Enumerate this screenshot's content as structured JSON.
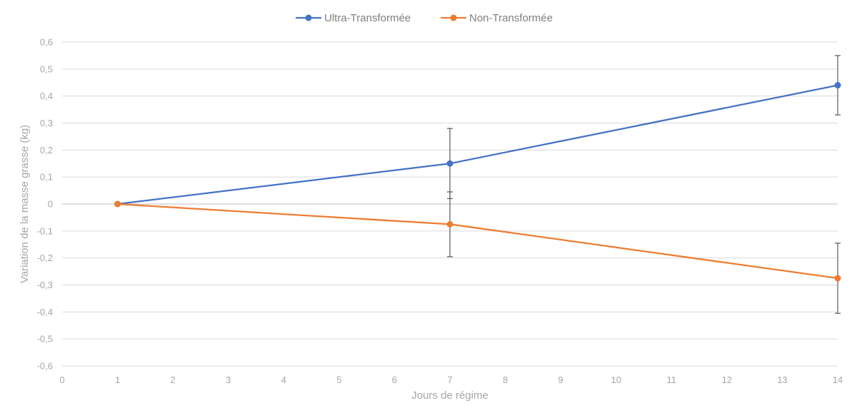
{
  "chart_data": {
    "type": "line",
    "xlabel": "Jours de régime",
    "ylabel": "Variation de la masse grasse (kg)",
    "xlim": [
      0,
      14
    ],
    "ylim": [
      -0.6,
      0.6
    ],
    "x_ticks": [
      "0",
      "1",
      "2",
      "3",
      "4",
      "5",
      "6",
      "7",
      "8",
      "9",
      "10",
      "11",
      "12",
      "13",
      "14"
    ],
    "y_ticks": [
      "0,6",
      "0,5",
      "0,4",
      "0,3",
      "0,2",
      "0,1",
      "0",
      "-0,1",
      "-0,2",
      "-0,3",
      "-0,4",
      "-0,5",
      "-0,6"
    ],
    "grid": true,
    "legend_position": "top",
    "series": [
      {
        "name": "Ultra-Transformée",
        "color": "#4472c4",
        "points": [
          {
            "x": 1,
            "y": 0.0,
            "err_low": 0.0,
            "err_high": 0.0
          },
          {
            "x": 7,
            "y": 0.15,
            "err_low": 0.02,
            "err_high": 0.28
          },
          {
            "x": 14,
            "y": 0.44,
            "err_low": 0.33,
            "err_high": 0.55
          }
        ]
      },
      {
        "name": "Non-Transformée",
        "color": "#ed7d31",
        "points": [
          {
            "x": 1,
            "y": 0.0,
            "err_low": 0.0,
            "err_high": 0.0
          },
          {
            "x": 7,
            "y": -0.075,
            "err_low": -0.195,
            "err_high": 0.045
          },
          {
            "x": 14,
            "y": -0.275,
            "err_low": -0.405,
            "err_high": -0.145
          }
        ]
      }
    ]
  }
}
